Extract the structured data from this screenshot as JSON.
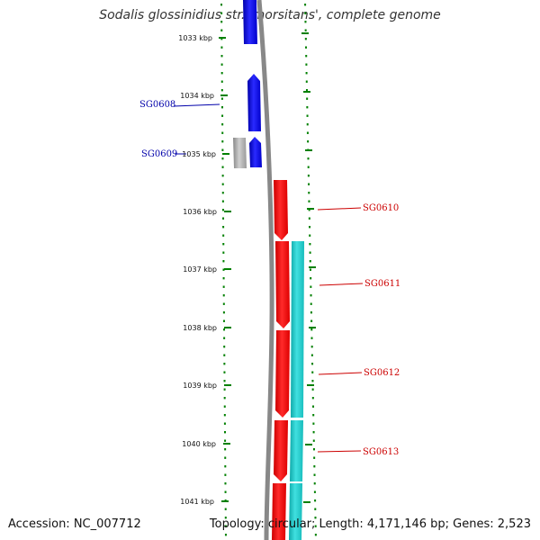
{
  "title": "Sodalis glossinidius str. 'morsitans', complete genome",
  "footer": {
    "accession": "Accession: NC_007712",
    "summary": "Topology: circular; Length: 4,171,146 bp; Genes: 2,523"
  },
  "ticks": [
    {
      "label": "1033 kbp"
    },
    {
      "label": "1034 kbp"
    },
    {
      "label": "1035 kbp"
    },
    {
      "label": "1036 kbp"
    },
    {
      "label": "1037 kbp"
    },
    {
      "label": "1038 kbp"
    },
    {
      "label": "1039 kbp"
    },
    {
      "label": "1040 kbp"
    },
    {
      "label": "1041 kbp"
    }
  ],
  "gene_labels": {
    "left": [
      {
        "text": "SG0608"
      },
      {
        "text": "SG0609"
      }
    ],
    "right": [
      {
        "text": "SG0610"
      },
      {
        "text": "SG0611"
      },
      {
        "text": "SG0612"
      },
      {
        "text": "SG0613"
      }
    ]
  },
  "colors": {
    "forward_gene": "#0000ee",
    "reverse_gene": "#ee0000",
    "cds_track": "#1ec8c8",
    "gray_feature": "#aaaaaa",
    "backbone": "#888888",
    "tick": "#008000",
    "label_blue": "#0000aa",
    "label_red": "#cc0000"
  }
}
